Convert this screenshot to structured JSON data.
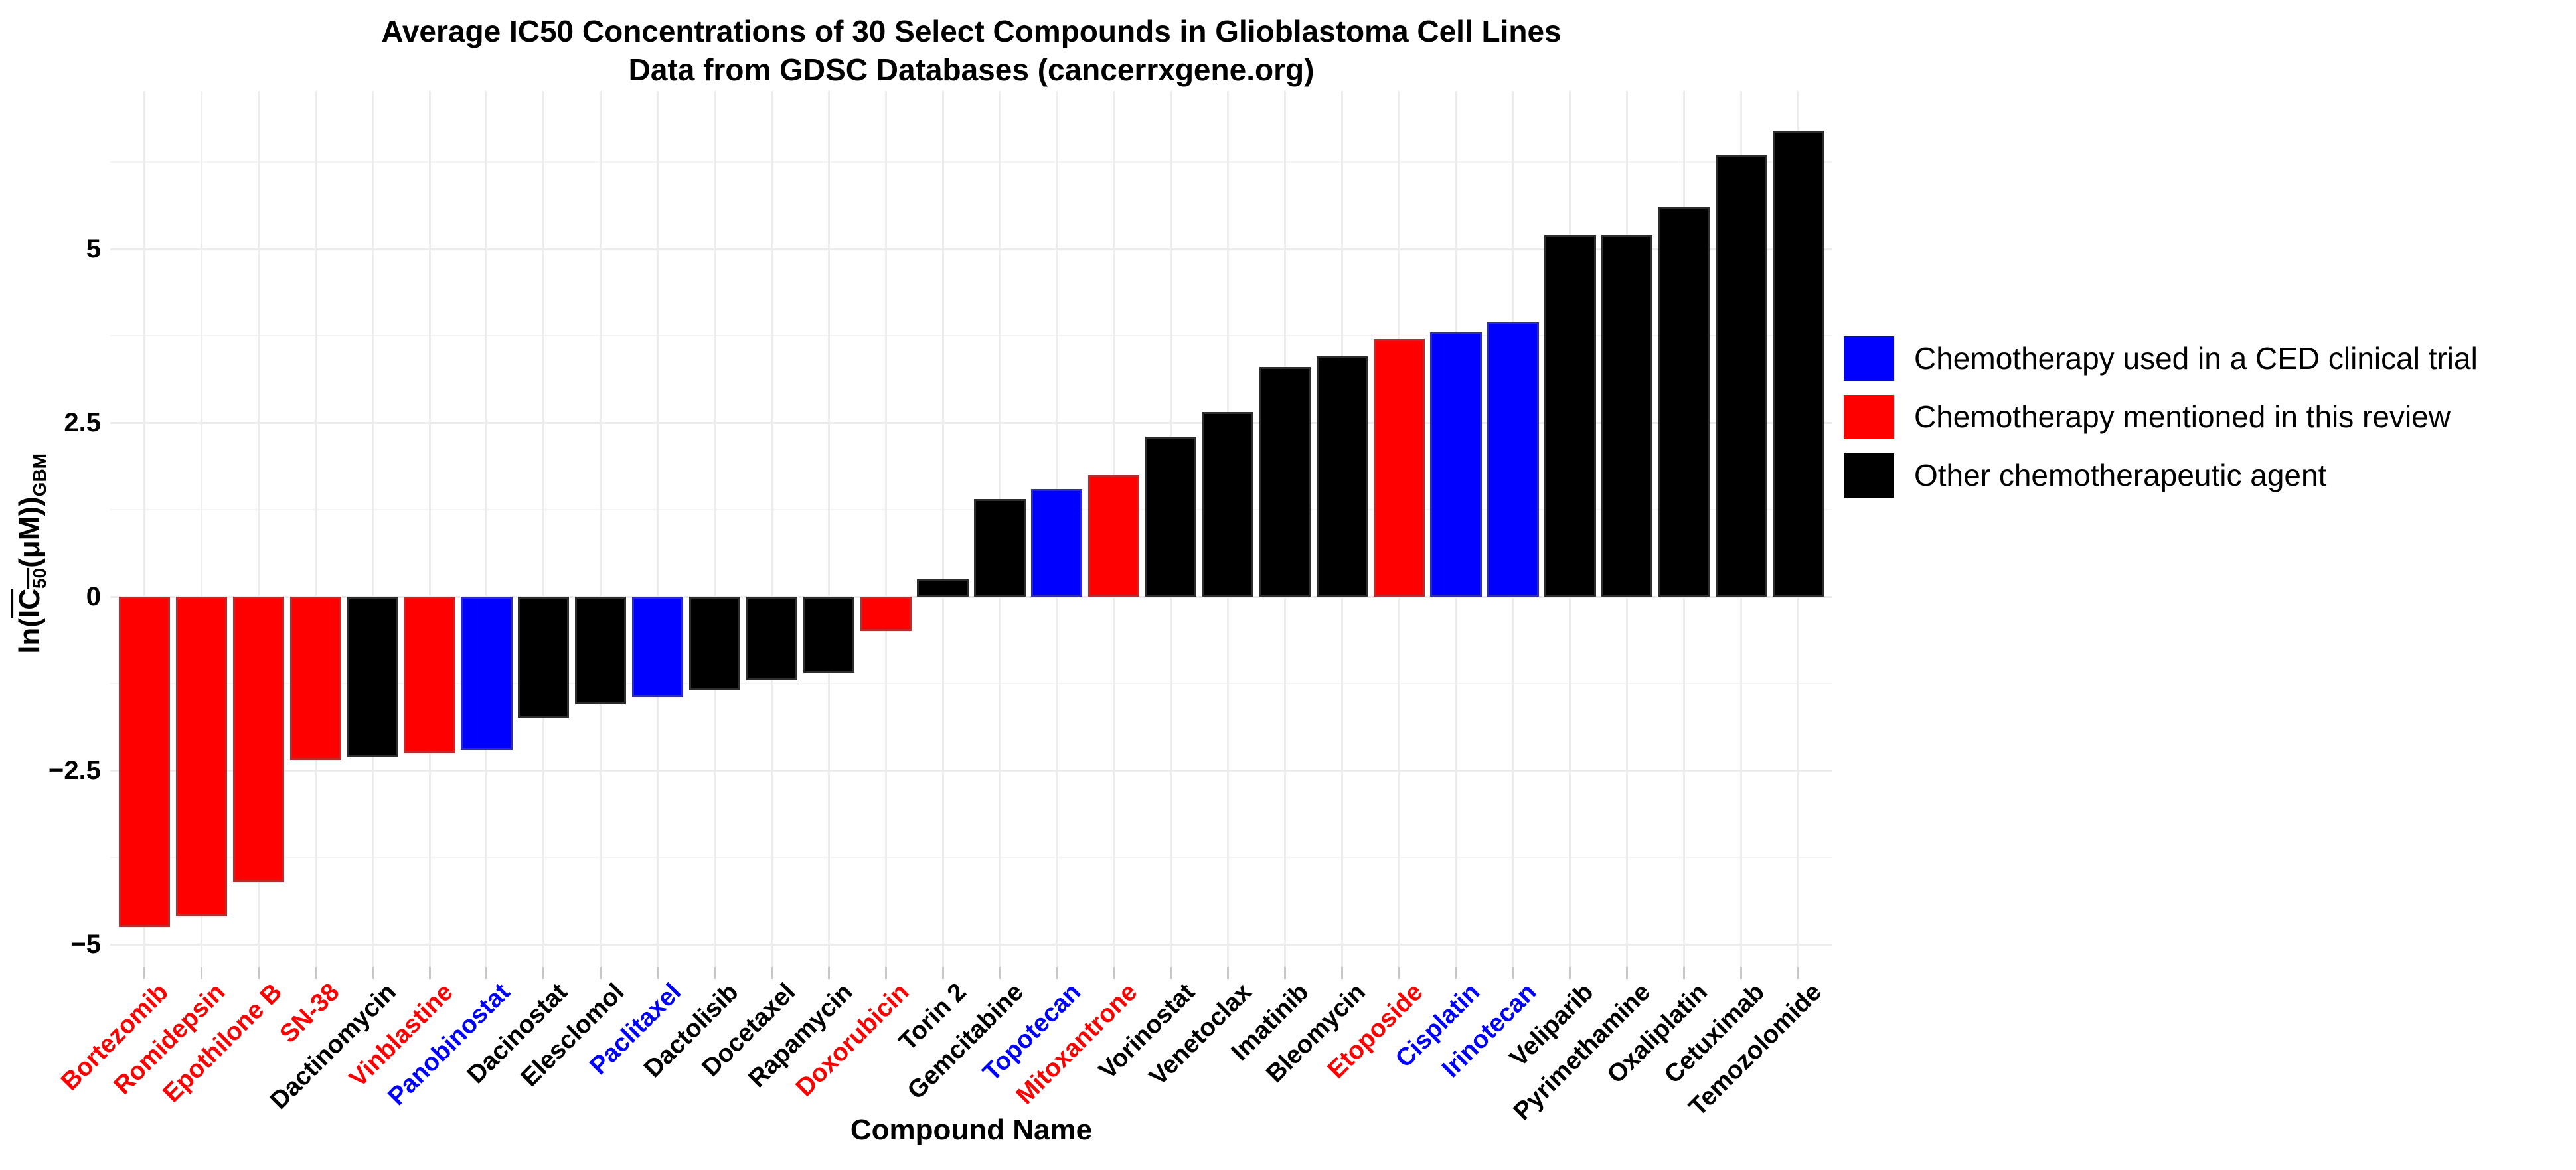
{
  "chart_data": {
    "type": "bar",
    "title_line1": "Average IC50 Concentrations of 30 Select Compounds in Glioblastoma Cell Lines",
    "title_line2": "Data from GDSC Databases (cancerrxgene.org)",
    "xlabel": "Compound Name",
    "ylabel_parts": {
      "prefix": "ln(",
      "overline_main": "IC",
      "overline_sub": "50",
      "mid": "(μM))",
      "suffix_sub": "GBM"
    },
    "ylim": [
      -5.3,
      7.3
    ],
    "grid": true,
    "legend_position": "right",
    "y_major_ticks": [
      {
        "label": "5",
        "value": 5
      },
      {
        "label": "2.5",
        "value": 2.5
      },
      {
        "label": "0",
        "value": 0
      },
      {
        "label": "−2.5",
        "value": -2.5
      },
      {
        "label": "−5",
        "value": -5
      }
    ],
    "y_minor_values": [
      6.25,
      3.75,
      1.25,
      -1.25,
      -3.75
    ],
    "categories": [
      "Bortezomib",
      "Romidepsin",
      "Epothilone B",
      "SN-38",
      "Dactinomycin",
      "Vinblastine",
      "Panobinostat",
      "Dacinostat",
      "Elesclomol",
      "Paclitaxel",
      "Dactolisib",
      "Docetaxel",
      "Rapamycin",
      "Doxorubicin",
      "Torin 2",
      "Gemcitabine",
      "Topotecan",
      "Mitoxantrone",
      "Vorinostat",
      "Venetoclax",
      "Imatinib",
      "Bleomycin",
      "Etoposide",
      "Cisplatin",
      "Irinotecan",
      "Veliparib",
      "Pyrimethamine",
      "Oxaliplatin",
      "Cetuximab",
      "Temozolomide"
    ],
    "values": [
      -4.75,
      -4.6,
      -4.1,
      -2.35,
      -2.3,
      -2.25,
      -2.2,
      -1.75,
      -1.55,
      -1.45,
      -1.35,
      -1.2,
      -1.1,
      -0.5,
      0.25,
      1.4,
      1.55,
      1.75,
      2.3,
      2.65,
      3.3,
      3.45,
      3.7,
      3.8,
      3.95,
      5.2,
      5.2,
      5.6,
      6.35,
      6.7
    ],
    "groups": [
      "review",
      "review",
      "review",
      "review",
      "other",
      "review",
      "ced",
      "other",
      "other",
      "ced",
      "other",
      "other",
      "other",
      "review",
      "other",
      "other",
      "ced",
      "review",
      "other",
      "other",
      "other",
      "other",
      "review",
      "ced",
      "ced",
      "other",
      "other",
      "other",
      "other",
      "other"
    ],
    "colors": {
      "ced": "#0000FF",
      "review": "#FF0000",
      "other": "#000000"
    },
    "legend": [
      {
        "label": "Chemotherapy used in a CED clinical trial",
        "color_key": "ced"
      },
      {
        "label": "Chemotherapy mentioned in this review",
        "color_key": "review"
      },
      {
        "label": "Other chemotherapeutic agent",
        "color_key": "other"
      }
    ]
  }
}
